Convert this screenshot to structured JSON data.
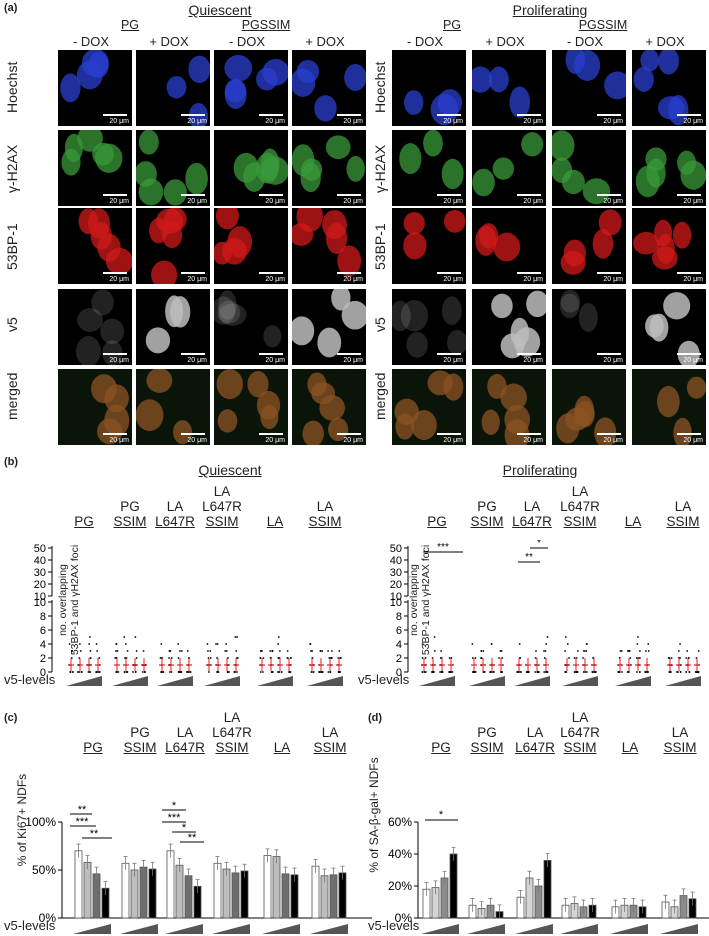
{
  "panel_a": {
    "letter": "(a)",
    "conditions": [
      {
        "title": "Quiescent",
        "groups": [
          {
            "label": "PG",
            "sub": [
              "- DOX",
              "+ DOX"
            ]
          },
          {
            "label": "PGSSIM",
            "sub": [
              "- DOX",
              "+ DOX"
            ]
          }
        ]
      },
      {
        "title": "Proliferating",
        "groups": [
          {
            "label": "PG",
            "sub": [
              "- DOX",
              "+ DOX"
            ]
          },
          {
            "label": "PGSSIM",
            "sub": [
              "- DOX",
              "+ DOX"
            ]
          }
        ]
      }
    ],
    "rows": [
      "Hoechst",
      "γ-H2AX",
      "53BP-1",
      "v5",
      "merged"
    ],
    "scale_label": "20 μm",
    "row_colors": [
      "#2a3fd0",
      "#3a9a3a",
      "#d11a1a",
      "#bdbdbd",
      "#c8612a"
    ]
  },
  "panel_b": {
    "letter": "(b)",
    "left_title": "Quiescent",
    "right_title": "Proliferating",
    "groups": [
      {
        "top": "",
        "u": "PG"
      },
      {
        "top": "PG",
        "u": "SSIM"
      },
      {
        "top": "LA",
        "u": "L647R"
      },
      {
        "top": "LA\nL647R",
        "u": "SSIM"
      },
      {
        "top": "",
        "u": "LA"
      },
      {
        "top": "LA",
        "u": "SSIM"
      }
    ],
    "ylabel_line1": "no. overlapping",
    "ylabel_line2": "53BP-1 and γH2AX foci",
    "yticks_upper": [
      "50",
      "40",
      "30",
      "20",
      "10"
    ],
    "yticks_lower": [
      "10",
      "8",
      "6",
      "4",
      "2",
      "0"
    ],
    "v5_label": "v5-levels",
    "sig_left": [],
    "sig_right": [
      "***",
      "**",
      "*"
    ]
  },
  "panel_c": {
    "letter": "(c)",
    "ylabel": "% of Ki67+ NDFs",
    "yticks": [
      "100%",
      "50%",
      "0%"
    ],
    "v5_label": "v5-levels",
    "sig_pg": [
      "**",
      "***",
      "**"
    ],
    "sig_la": [
      "*",
      "***",
      "*",
      "**"
    ]
  },
  "panel_d": {
    "letter": "(d)",
    "ylabel": "% of SA-β-gal+ NDFs",
    "yticks": [
      "60%",
      "40%",
      "20%",
      "0%"
    ],
    "v5_label": "v5-levels",
    "sig": [
      "*"
    ]
  },
  "chart_data": [
    {
      "type": "bar",
      "panel": "c",
      "ylabel": "% of Ki67+ NDFs",
      "ylim": [
        0,
        100
      ],
      "groups": [
        "PG",
        "PG SSIM",
        "LA L647R",
        "LA L647R SSIM",
        "LA",
        "LA SSIM"
      ],
      "series": [
        {
          "name": "v5 level 1",
          "values": [
            70,
            57,
            70,
            57,
            65,
            54
          ]
        },
        {
          "name": "v5 level 2",
          "values": [
            58,
            50,
            55,
            51,
            64,
            44
          ]
        },
        {
          "name": "v5 level 3",
          "values": [
            46,
            53,
            44,
            47,
            46,
            45
          ]
        },
        {
          "name": "v5 level 4",
          "values": [
            31,
            51,
            33,
            49,
            45,
            47
          ]
        }
      ],
      "colors": [
        "#ffffff",
        "#bdbdbd",
        "#6e6e6e",
        "#000000"
      ]
    },
    {
      "type": "bar",
      "panel": "d",
      "ylabel": "% of SA-β-gal+ NDFs",
      "ylim": [
        0,
        60
      ],
      "groups": [
        "PG",
        "PG SSIM",
        "LA L647R",
        "LA L647R SSIM",
        "LA",
        "LA SSIM"
      ],
      "series": [
        {
          "name": "v5 level 1",
          "values": [
            18,
            8,
            13,
            8,
            7,
            10
          ]
        },
        {
          "name": "v5 level 2",
          "values": [
            19,
            6,
            25,
            9,
            8,
            7
          ]
        },
        {
          "name": "v5 level 3",
          "values": [
            25,
            8,
            20,
            7,
            8,
            14
          ]
        },
        {
          "name": "v5 level 4",
          "values": [
            40,
            4,
            36,
            8,
            7,
            12
          ]
        }
      ],
      "colors": [
        "#ffffff",
        "#d4d4d4",
        "#8c8c8c",
        "#000000"
      ]
    }
  ]
}
